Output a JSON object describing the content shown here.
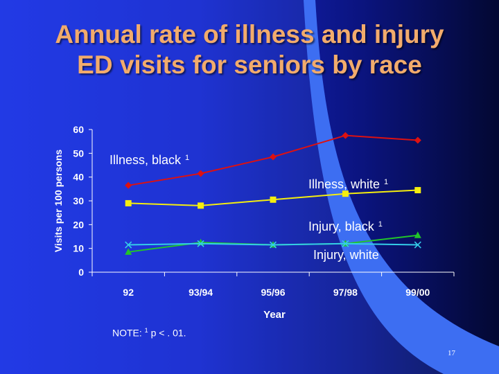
{
  "slide": {
    "title_line1": "Annual rate of illness and injury",
    "title_line2": "ED visits for seniors by race",
    "note_prefix": "NOTE: ",
    "note_sup": "1",
    "note_suffix": " p < . 01.",
    "page_number": "17"
  },
  "colors": {
    "title": "#f2ab6c",
    "illness_black": "#dd1111",
    "illness_white": "#f5ee0e",
    "injury_black": "#22c52a",
    "injury_white": "#34cde8"
  },
  "chart_data": {
    "type": "line",
    "title": "",
    "xlabel": "Year",
    "ylabel": "Visits per 100 persons",
    "categories": [
      "92",
      "93/94",
      "95/96",
      "97/98",
      "99/00"
    ],
    "ylim": [
      0,
      60
    ],
    "yticks": [
      "0",
      "10",
      "20",
      "30",
      "40",
      "50",
      "60"
    ],
    "grid": false,
    "series": [
      {
        "name": "Illness, black",
        "sup": "1",
        "values": [
          36.5,
          41.5,
          48.5,
          57.5,
          55.5
        ],
        "color": "#dd1111",
        "marker": "diamond"
      },
      {
        "name": "Illness, white",
        "sup": "1",
        "values": [
          29,
          28,
          30.5,
          33,
          34.5
        ],
        "color": "#f5ee0e",
        "marker": "square"
      },
      {
        "name": "Injury, black",
        "sup": "1",
        "values": [
          8.5,
          12.5,
          11.5,
          12,
          15.5
        ],
        "color": "#22c52a",
        "marker": "triangle"
      },
      {
        "name": "Injury, white",
        "sup": "",
        "values": [
          11.5,
          12,
          11.5,
          12,
          11.5
        ],
        "color": "#34cde8",
        "marker": "x"
      }
    ]
  }
}
